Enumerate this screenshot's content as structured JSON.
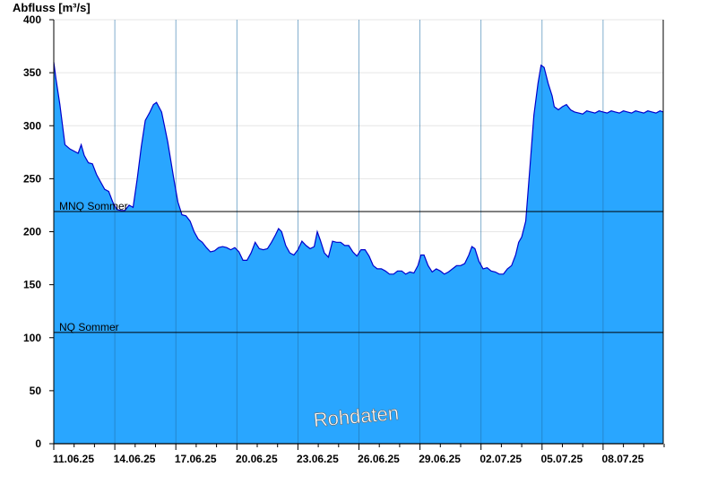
{
  "chart_data": {
    "type": "area",
    "ylabel": "Abfluss [m³/s]",
    "xlabel": "",
    "ylim": [
      0,
      400
    ],
    "yticks": [
      0,
      50,
      100,
      150,
      200,
      250,
      300,
      350,
      400
    ],
    "xlim_days": [
      0,
      30
    ],
    "xticks": [
      {
        "label": "11.06.25",
        "day": 0
      },
      {
        "label": "14.06.25",
        "day": 3
      },
      {
        "label": "17.06.25",
        "day": 6
      },
      {
        "label": "20.06.25",
        "day": 9
      },
      {
        "label": "23.06.25",
        "day": 12
      },
      {
        "label": "26.06.25",
        "day": 15
      },
      {
        "label": "29.06.25",
        "day": 18
      },
      {
        "label": "02.07.25",
        "day": 21
      },
      {
        "label": "05.07.25",
        "day": 24
      },
      {
        "label": "08.07.25",
        "day": 27
      }
    ],
    "grid": true,
    "fill_color": "#29a6ff",
    "line_color": "#0000cc",
    "series": [
      {
        "values": [
          [
            0.0,
            360
          ],
          [
            0.1,
            345
          ],
          [
            0.3,
            320
          ],
          [
            0.55,
            282
          ],
          [
            0.8,
            278
          ],
          [
            1.0,
            276
          ],
          [
            1.2,
            274
          ],
          [
            1.35,
            282
          ],
          [
            1.5,
            272
          ],
          [
            1.7,
            265
          ],
          [
            1.9,
            264
          ],
          [
            2.1,
            254
          ],
          [
            2.3,
            247
          ],
          [
            2.5,
            240
          ],
          [
            2.7,
            238
          ],
          [
            2.9,
            228
          ],
          [
            3.1,
            221
          ],
          [
            3.3,
            220
          ],
          [
            3.5,
            220
          ],
          [
            3.7,
            225
          ],
          [
            3.9,
            223
          ],
          [
            4.1,
            250
          ],
          [
            4.3,
            280
          ],
          [
            4.5,
            305
          ],
          [
            4.7,
            312
          ],
          [
            4.9,
            320
          ],
          [
            5.05,
            322
          ],
          [
            5.3,
            313
          ],
          [
            5.6,
            285
          ],
          [
            5.9,
            250
          ],
          [
            6.1,
            228
          ],
          [
            6.3,
            216
          ],
          [
            6.5,
            215
          ],
          [
            6.7,
            210
          ],
          [
            6.9,
            200
          ],
          [
            7.1,
            193
          ],
          [
            7.3,
            190
          ],
          [
            7.5,
            185
          ],
          [
            7.7,
            181
          ],
          [
            7.9,
            182
          ],
          [
            8.1,
            185
          ],
          [
            8.3,
            186
          ],
          [
            8.5,
            185
          ],
          [
            8.7,
            183
          ],
          [
            8.9,
            185
          ],
          [
            9.1,
            181
          ],
          [
            9.3,
            173
          ],
          [
            9.5,
            173
          ],
          [
            9.7,
            180
          ],
          [
            9.9,
            190
          ],
          [
            10.1,
            184
          ],
          [
            10.3,
            183
          ],
          [
            10.5,
            184
          ],
          [
            10.7,
            190
          ],
          [
            10.9,
            197
          ],
          [
            11.05,
            203
          ],
          [
            11.2,
            200
          ],
          [
            11.4,
            187
          ],
          [
            11.6,
            180
          ],
          [
            11.8,
            178
          ],
          [
            12.0,
            183
          ],
          [
            12.2,
            191
          ],
          [
            12.4,
            187
          ],
          [
            12.6,
            184
          ],
          [
            12.8,
            186
          ],
          [
            12.95,
            200
          ],
          [
            13.1,
            192
          ],
          [
            13.3,
            180
          ],
          [
            13.5,
            176
          ],
          [
            13.7,
            191
          ],
          [
            13.9,
            190
          ],
          [
            14.1,
            190
          ],
          [
            14.3,
            187
          ],
          [
            14.5,
            187
          ],
          [
            14.7,
            181
          ],
          [
            14.9,
            177
          ],
          [
            15.1,
            183
          ],
          [
            15.3,
            183
          ],
          [
            15.5,
            177
          ],
          [
            15.7,
            168
          ],
          [
            15.9,
            165
          ],
          [
            16.1,
            165
          ],
          [
            16.3,
            163
          ],
          [
            16.5,
            160
          ],
          [
            16.7,
            160
          ],
          [
            16.9,
            163
          ],
          [
            17.1,
            163
          ],
          [
            17.3,
            160
          ],
          [
            17.5,
            162
          ],
          [
            17.7,
            161
          ],
          [
            17.9,
            168
          ],
          [
            18.05,
            178
          ],
          [
            18.2,
            178
          ],
          [
            18.4,
            168
          ],
          [
            18.6,
            162
          ],
          [
            18.8,
            165
          ],
          [
            19.0,
            163
          ],
          [
            19.2,
            160
          ],
          [
            19.4,
            162
          ],
          [
            19.6,
            165
          ],
          [
            19.8,
            168
          ],
          [
            20.0,
            168
          ],
          [
            20.2,
            170
          ],
          [
            20.4,
            178
          ],
          [
            20.55,
            186
          ],
          [
            20.7,
            184
          ],
          [
            20.9,
            172
          ],
          [
            21.1,
            165
          ],
          [
            21.3,
            166
          ],
          [
            21.5,
            163
          ],
          [
            21.7,
            162
          ],
          [
            21.9,
            160
          ],
          [
            22.1,
            160
          ],
          [
            22.3,
            165
          ],
          [
            22.5,
            168
          ],
          [
            22.7,
            178
          ],
          [
            22.85,
            190
          ],
          [
            23.0,
            195
          ],
          [
            23.2,
            210
          ],
          [
            23.4,
            260
          ],
          [
            23.6,
            310
          ],
          [
            23.8,
            340
          ],
          [
            23.95,
            357
          ],
          [
            24.1,
            355
          ],
          [
            24.3,
            340
          ],
          [
            24.5,
            328
          ],
          [
            24.6,
            318
          ],
          [
            24.8,
            315
          ],
          [
            25.0,
            318
          ],
          [
            25.2,
            320
          ],
          [
            25.4,
            315
          ],
          [
            25.6,
            313
          ],
          [
            25.8,
            312
          ],
          [
            26.0,
            311
          ],
          [
            26.2,
            314
          ],
          [
            26.4,
            313
          ],
          [
            26.6,
            312
          ],
          [
            26.8,
            314
          ],
          [
            27.0,
            313
          ],
          [
            27.2,
            312
          ],
          [
            27.4,
            314
          ],
          [
            27.6,
            313
          ],
          [
            27.8,
            312
          ],
          [
            28.0,
            314
          ],
          [
            28.2,
            313
          ],
          [
            28.4,
            312
          ],
          [
            28.6,
            314
          ],
          [
            28.8,
            313
          ],
          [
            29.0,
            312
          ],
          [
            29.2,
            314
          ],
          [
            29.4,
            313
          ],
          [
            29.6,
            312
          ],
          [
            29.8,
            314
          ],
          [
            30.0,
            313
          ]
        ]
      }
    ],
    "reference_lines": [
      {
        "label": "MNQ Sommer",
        "value": 219
      },
      {
        "label": "NQ Sommer",
        "value": 105
      }
    ],
    "watermark": "Rohdaten"
  }
}
